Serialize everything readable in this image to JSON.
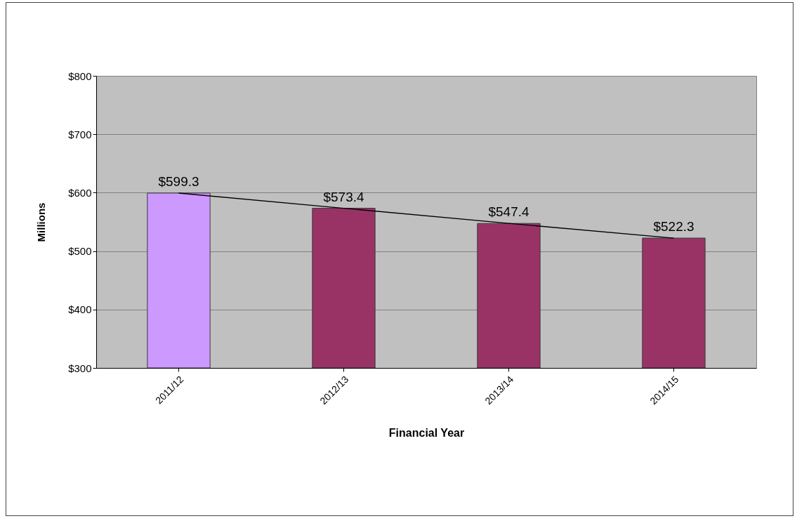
{
  "chart_data": {
    "type": "bar",
    "xlabel": "Financial Year",
    "ylabel": "Millions",
    "categories": [
      "2011/12",
      "2012/13",
      "2013/14",
      "2014/15"
    ],
    "series": [
      {
        "colors": [
          "#cc99ff",
          "#993366",
          "#993366",
          "#993366"
        ],
        "values": [
          599.3,
          573.4,
          547.4,
          522.3
        ],
        "value_labels": [
          "$599.3",
          "$573.4",
          "$547.4",
          "$522.3"
        ]
      },
      {
        "type": "line",
        "color": "#000000",
        "values": [
          599.3,
          573.4,
          547.4,
          522.3
        ]
      }
    ],
    "ylim": [
      300,
      800
    ],
    "yticks": [
      {
        "value": 300,
        "label": "$300"
      },
      {
        "value": 400,
        "label": "$400"
      },
      {
        "value": 500,
        "label": "$500"
      },
      {
        "value": 600,
        "label": "$600"
      },
      {
        "value": 700,
        "label": "$700"
      },
      {
        "value": 800,
        "label": "$800"
      }
    ],
    "grid": "y"
  }
}
